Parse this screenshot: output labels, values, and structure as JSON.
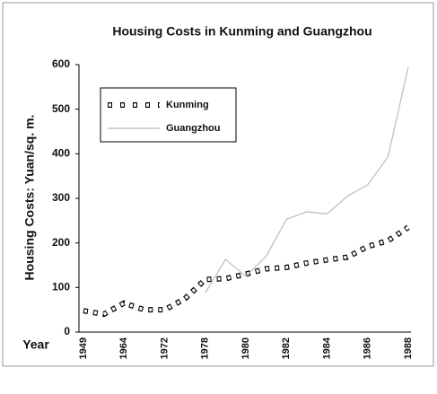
{
  "chart_data": {
    "type": "line",
    "title": "Housing Costs in Kunming and Guangzhou",
    "y_label": "Housing Costs: Yuan/sq. m.",
    "x_label": "Year",
    "categories": [
      "1949",
      null,
      "1964",
      null,
      "1972",
      null,
      "1978",
      null,
      "1980",
      null,
      "1982",
      null,
      "1984",
      null,
      "1986",
      null,
      "1988"
    ],
    "series": [
      {
        "name": "Kunming",
        "color": "#000000",
        "values": [
          48,
          40,
          65,
          50,
          50,
          75,
          118,
          120,
          130,
          142,
          145,
          155,
          162,
          168,
          192,
          205,
          235
        ]
      },
      {
        "name": "Guangzhou",
        "color": "#bbbbbb",
        "values": [
          null,
          null,
          null,
          null,
          null,
          null,
          88,
          163,
          125,
          170,
          253,
          270,
          265,
          305,
          330,
          393,
          595
        ]
      }
    ],
    "ylim": [
      0,
      600
    ],
    "yticks": [
      0,
      100,
      200,
      300,
      400,
      500,
      600
    ],
    "grid": false
  }
}
